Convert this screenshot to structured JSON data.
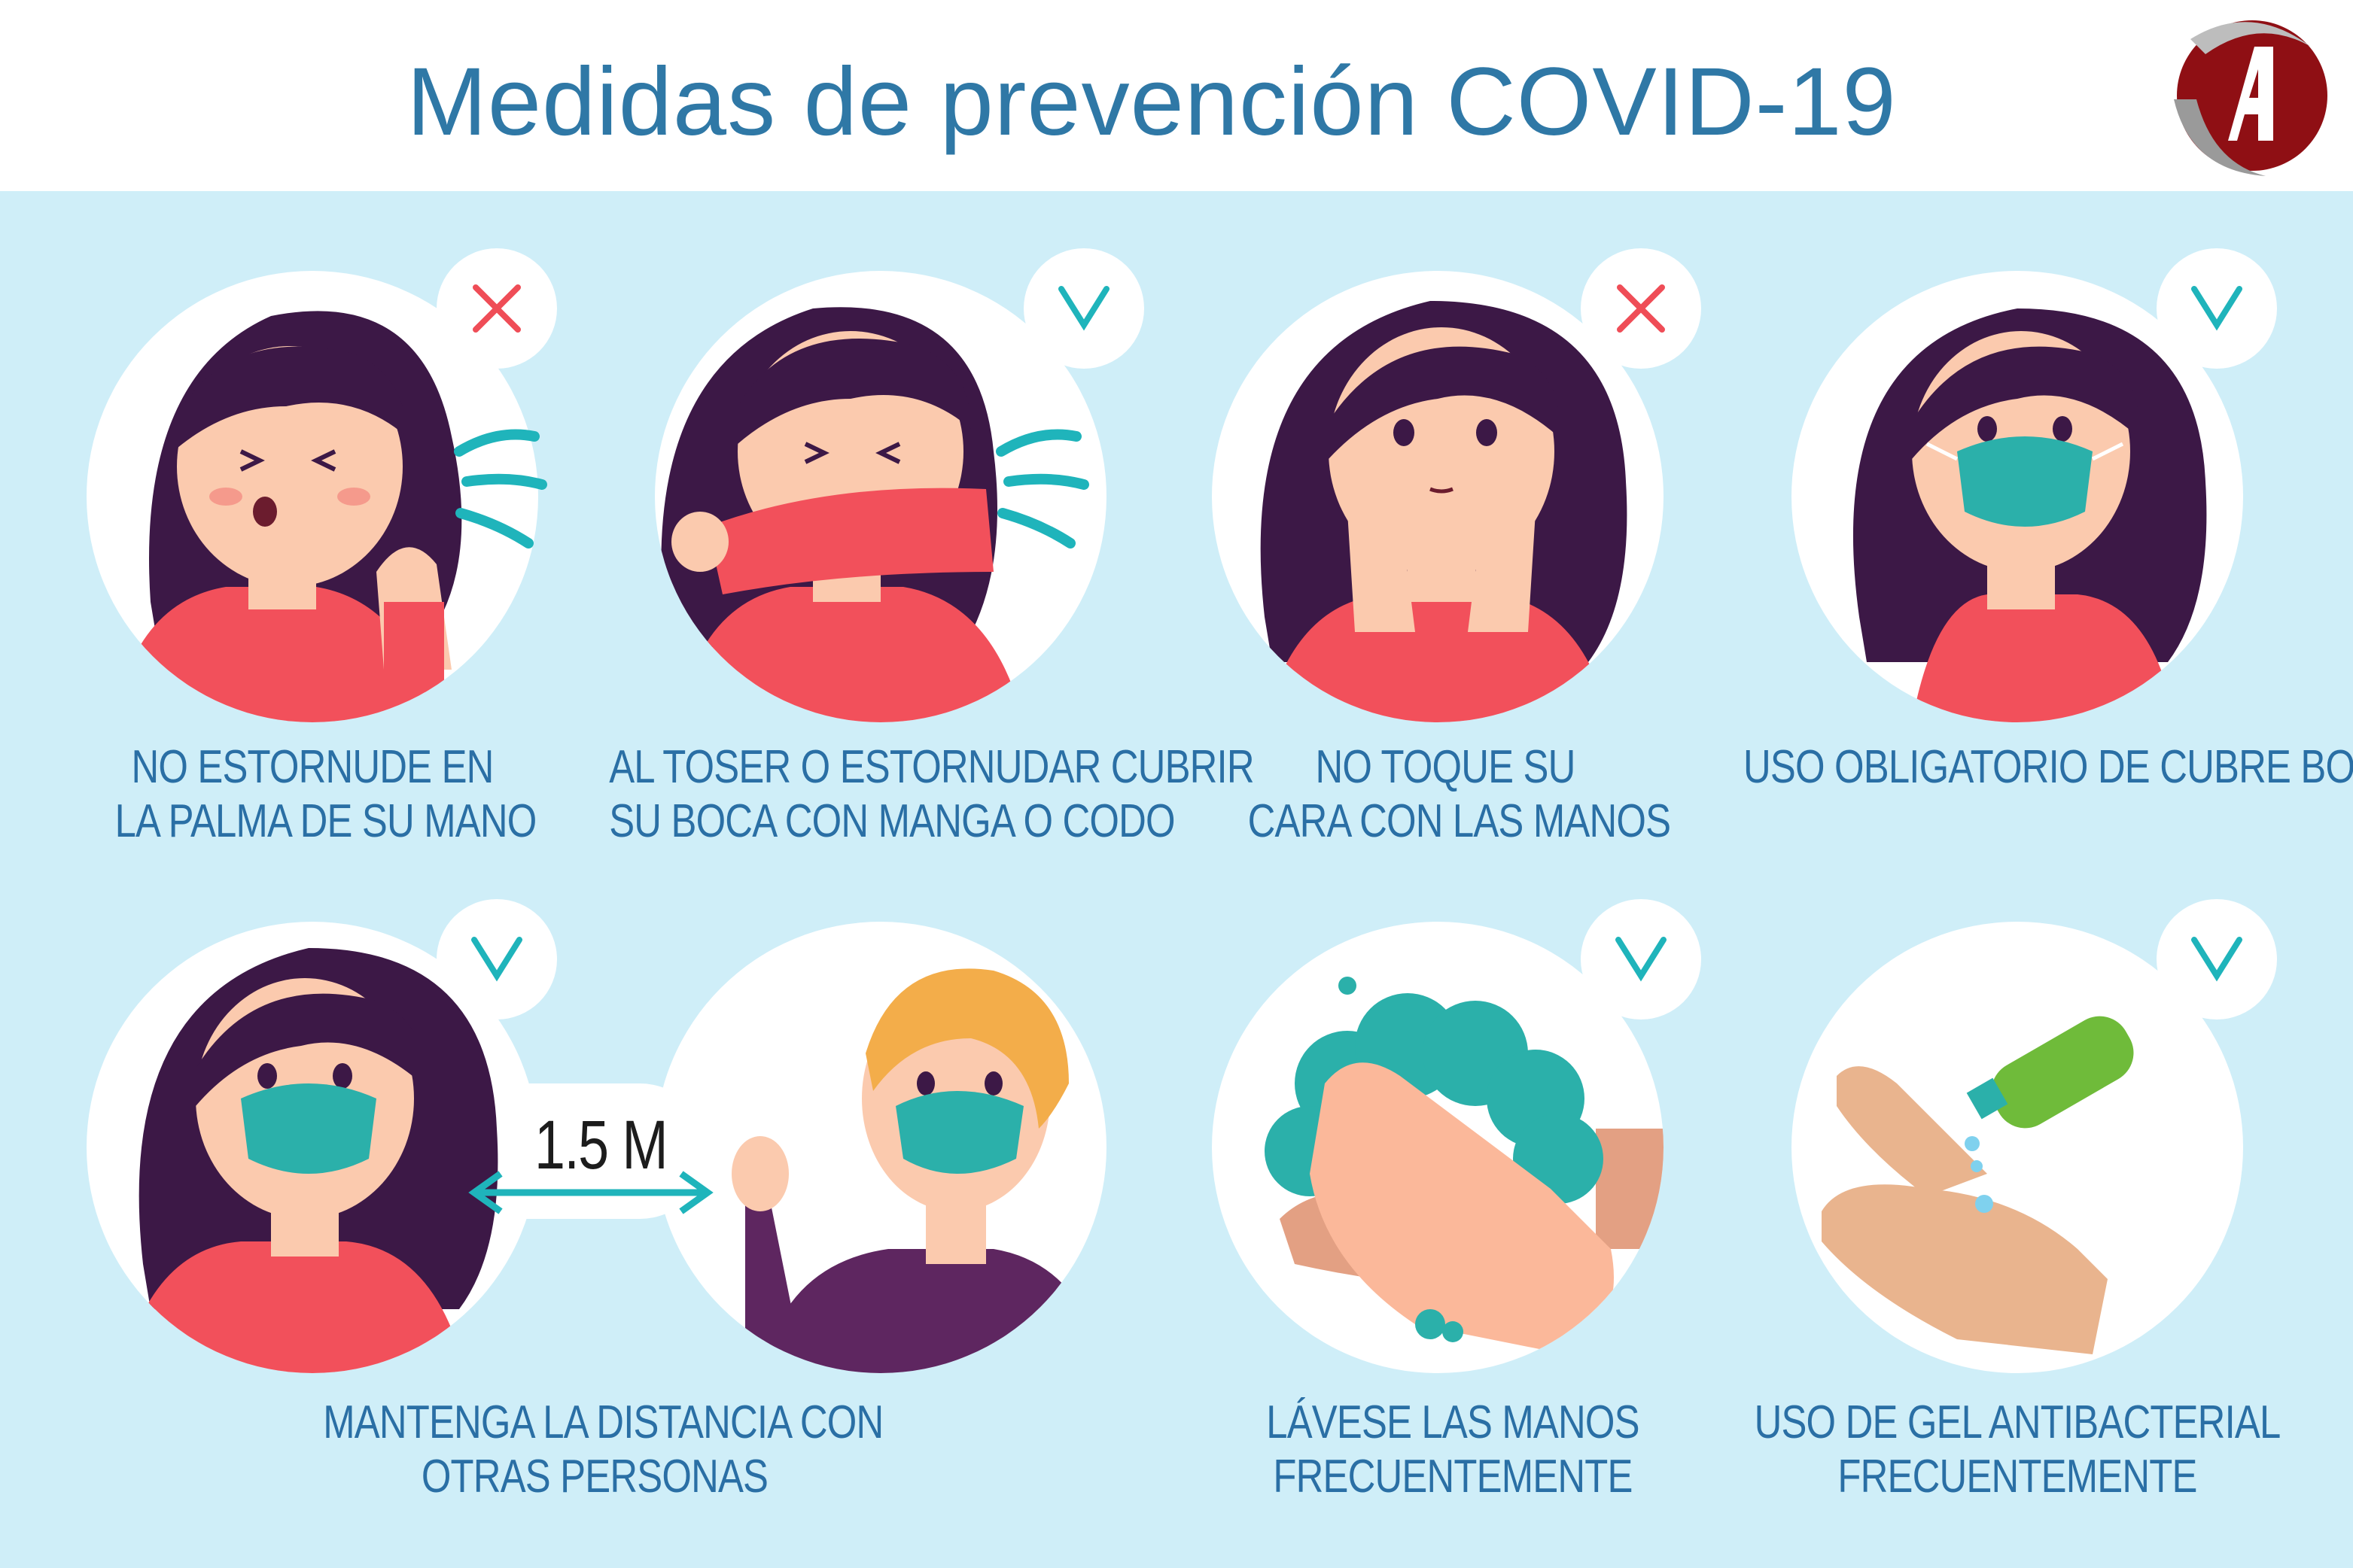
{
  "title": "Medidas de prevención COVID-19",
  "colors": {
    "title": "#2f78a6",
    "caption": "#2a6fa5",
    "panel": "#cfeef8",
    "check": "#1fb4bb",
    "cross": "#ef4d57",
    "hair": "#3c1846",
    "skin": "#fbcaae",
    "shirt": "#f2505b",
    "mask": "#2bb0aa",
    "logo_red": "#8f0f14"
  },
  "measures": [
    {
      "mark": "cross-icon",
      "lines": [
        "NO ESTORNUDE EN",
        "LA PALMA DE SU MANO"
      ]
    },
    {
      "mark": "check-icon",
      "lines": [
        "AL TOSER O ESTORNUDAR CUBRIR",
        "SU BOCA CON MANGA O CODO"
      ]
    },
    {
      "mark": "cross-icon",
      "lines": [
        "NO TOQUE SU",
        "CARA CON LAS MANOS"
      ]
    },
    {
      "mark": "check-icon",
      "lines": [
        "USO OBLIGATORIO DE CUBRE BOCA"
      ]
    },
    {
      "mark": "check-icon",
      "lines": [
        "MANTENGA LA DISTANCIA CON",
        "OTRAS PERSONAS"
      ]
    },
    {
      "mark": "check-icon",
      "lines": [
        "LÁVESE LAS MANOS",
        "FRECUENTEMENTE"
      ]
    },
    {
      "mark": "check-icon",
      "lines": [
        "USO DE GEL ANTIBACTERIAL",
        "FRECUENTEMENTE"
      ]
    }
  ],
  "distance_label": "1.5 M"
}
